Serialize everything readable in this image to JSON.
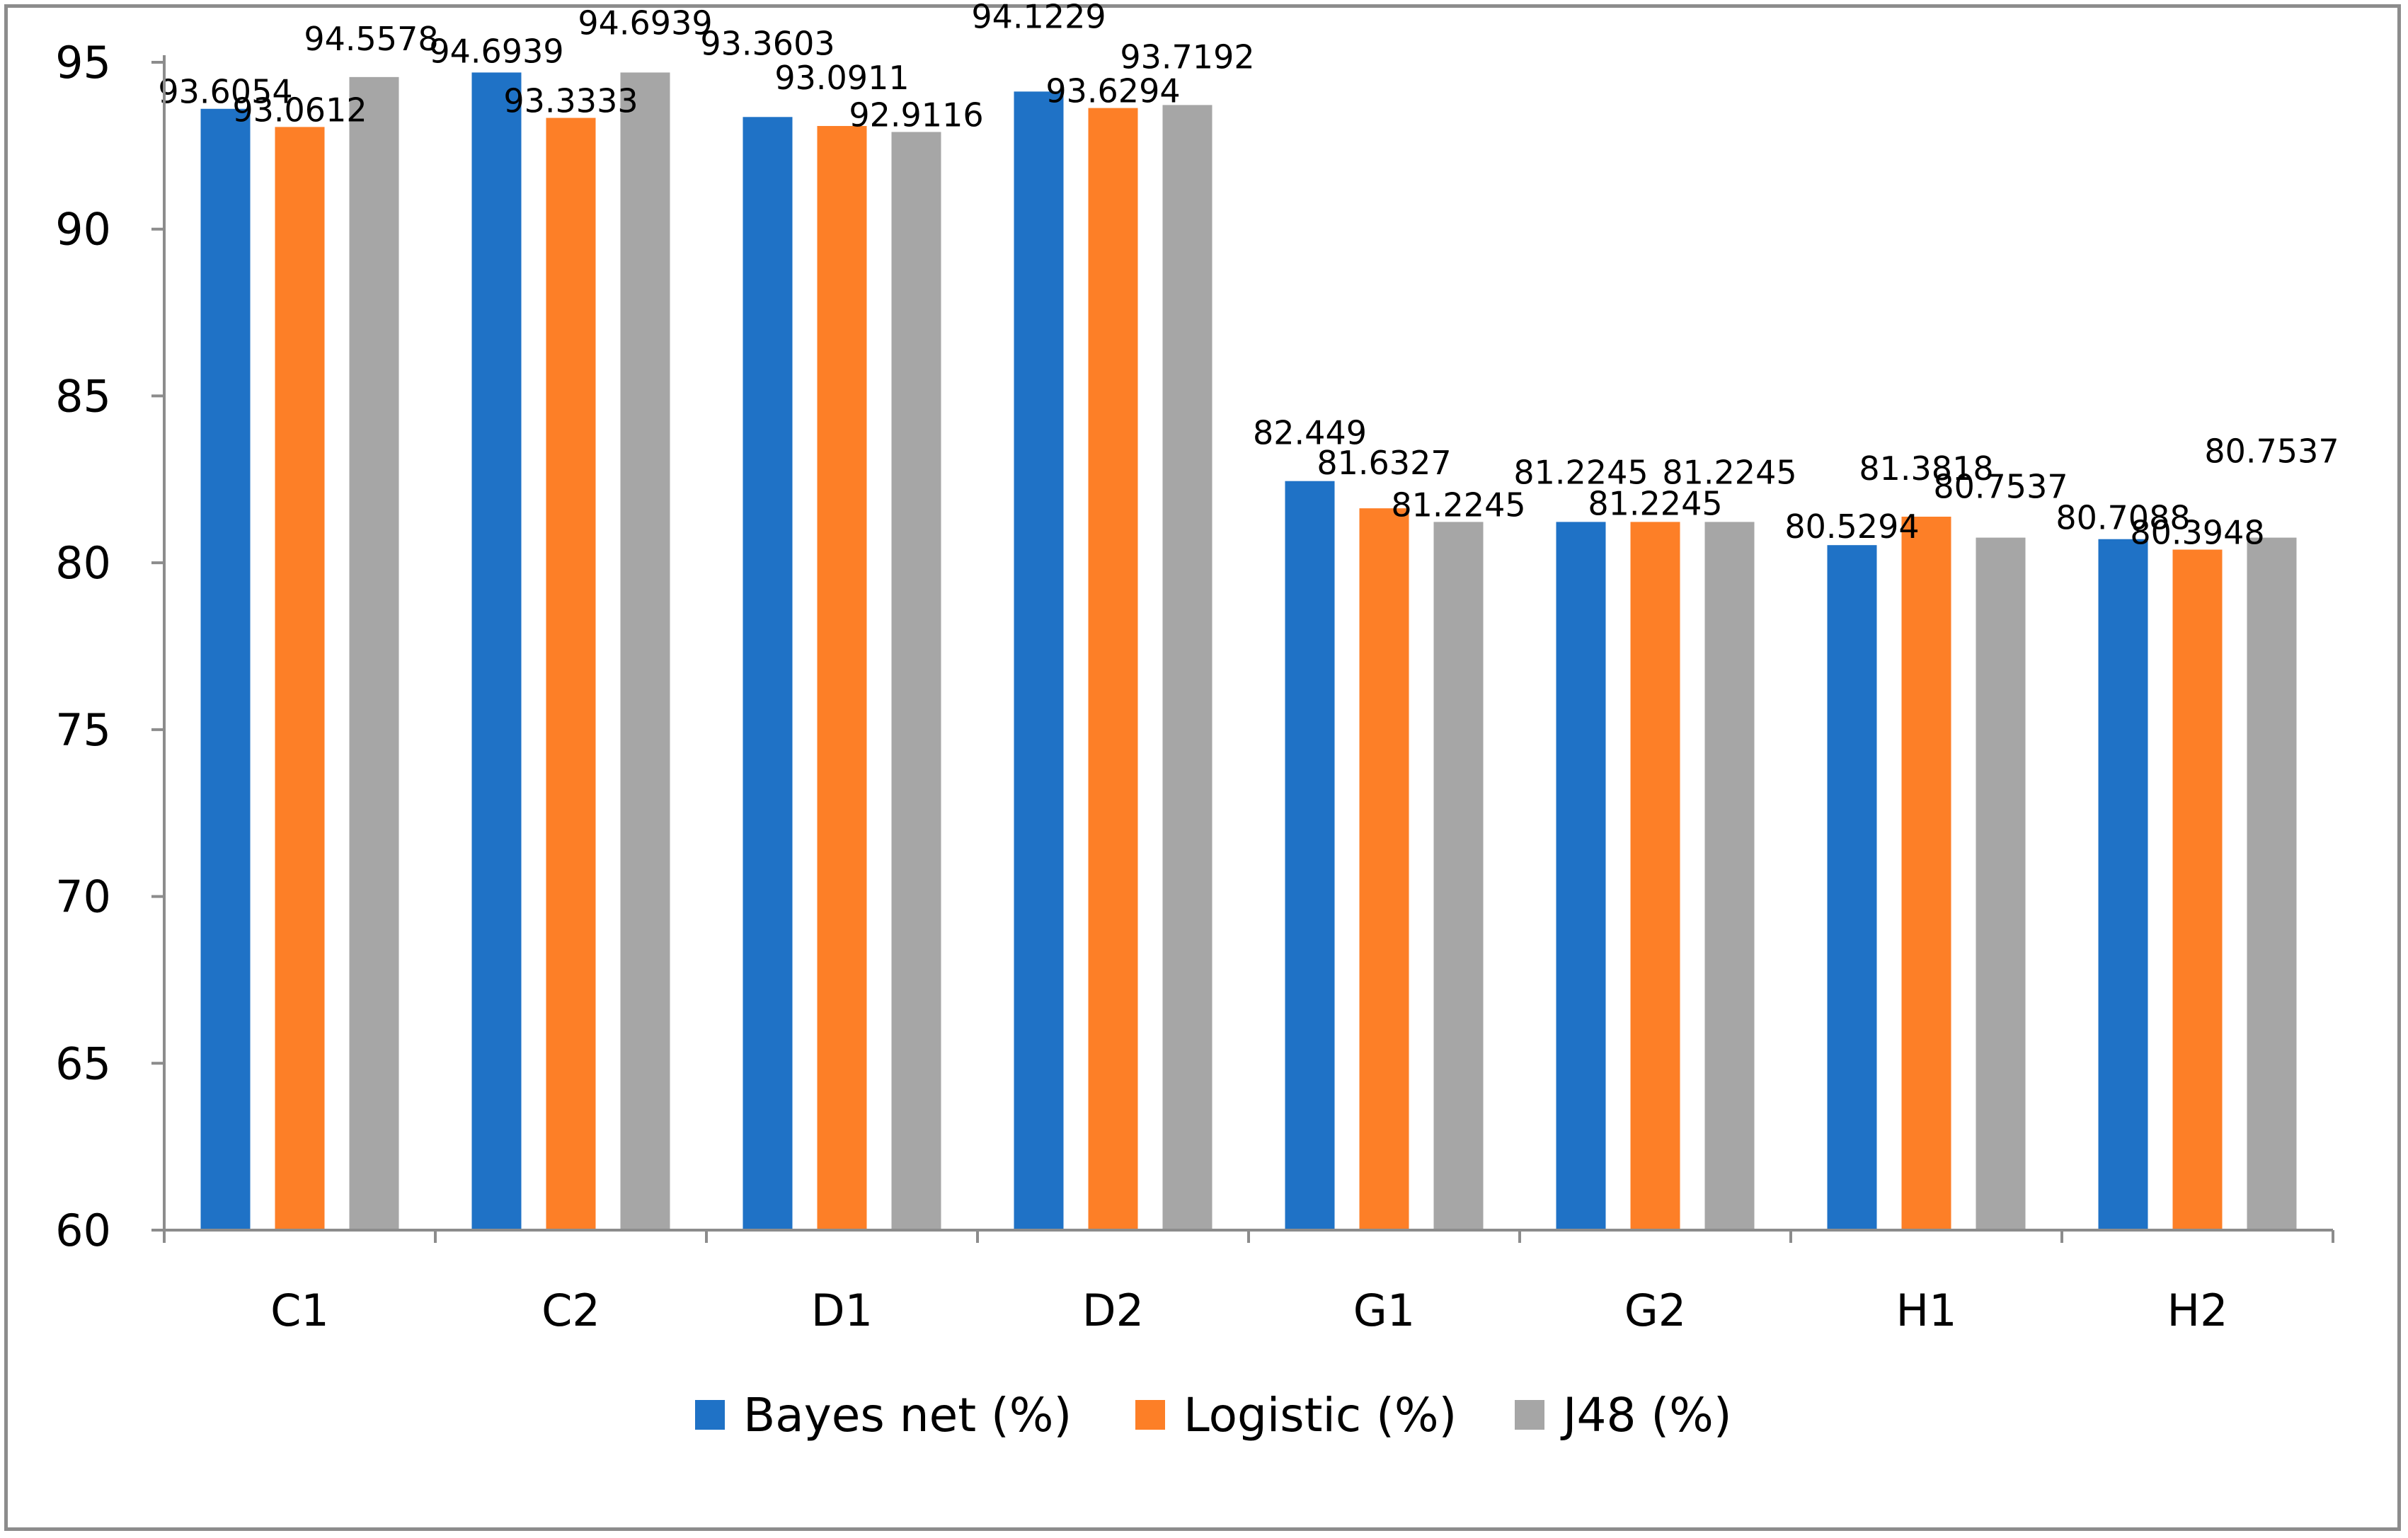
{
  "chart_data": {
    "type": "bar",
    "title": "",
    "xlabel": "",
    "ylabel": "",
    "ylim": [
      60,
      95
    ],
    "yticks": [
      60,
      65,
      70,
      75,
      80,
      85,
      90,
      95
    ],
    "categories": [
      "C1",
      "C2",
      "D1",
      "D2",
      "G1",
      "G2",
      "H1",
      "H2"
    ],
    "series": [
      {
        "name": "Bayes net (%)",
        "color": "#1f72c6",
        "values": [
          93.6054,
          94.6939,
          93.3603,
          94.1229,
          82.449,
          81.2245,
          80.5294,
          80.7088
        ],
        "labels": [
          "93.6054",
          "94.6939",
          "93.3603",
          "94.1229",
          "82.449",
          "81.2245",
          "80.5294",
          "80.7088"
        ]
      },
      {
        "name": "Logistic (%)",
        "color": "#fd7f27",
        "values": [
          93.0612,
          93.3333,
          93.0911,
          93.6294,
          81.6327,
          81.2245,
          81.3818,
          80.3948
        ],
        "labels": [
          "93.0612",
          "93.3333",
          "93.0911",
          "93.6294",
          "81.6327",
          "81.2245",
          "81.3818",
          "80.3948"
        ]
      },
      {
        "name": "J48 (%)",
        "color": "#a6a6a6",
        "values": [
          94.5578,
          94.6939,
          92.9116,
          93.7192,
          81.2245,
          81.2245,
          80.7537,
          80.7537
        ],
        "labels": [
          "94.5578",
          "94.6939",
          "92.9116",
          "93.7192",
          "81.2245",
          "81.2245",
          "80.7537",
          "80.7537"
        ]
      }
    ],
    "legend": "bottom",
    "grid": false
  }
}
